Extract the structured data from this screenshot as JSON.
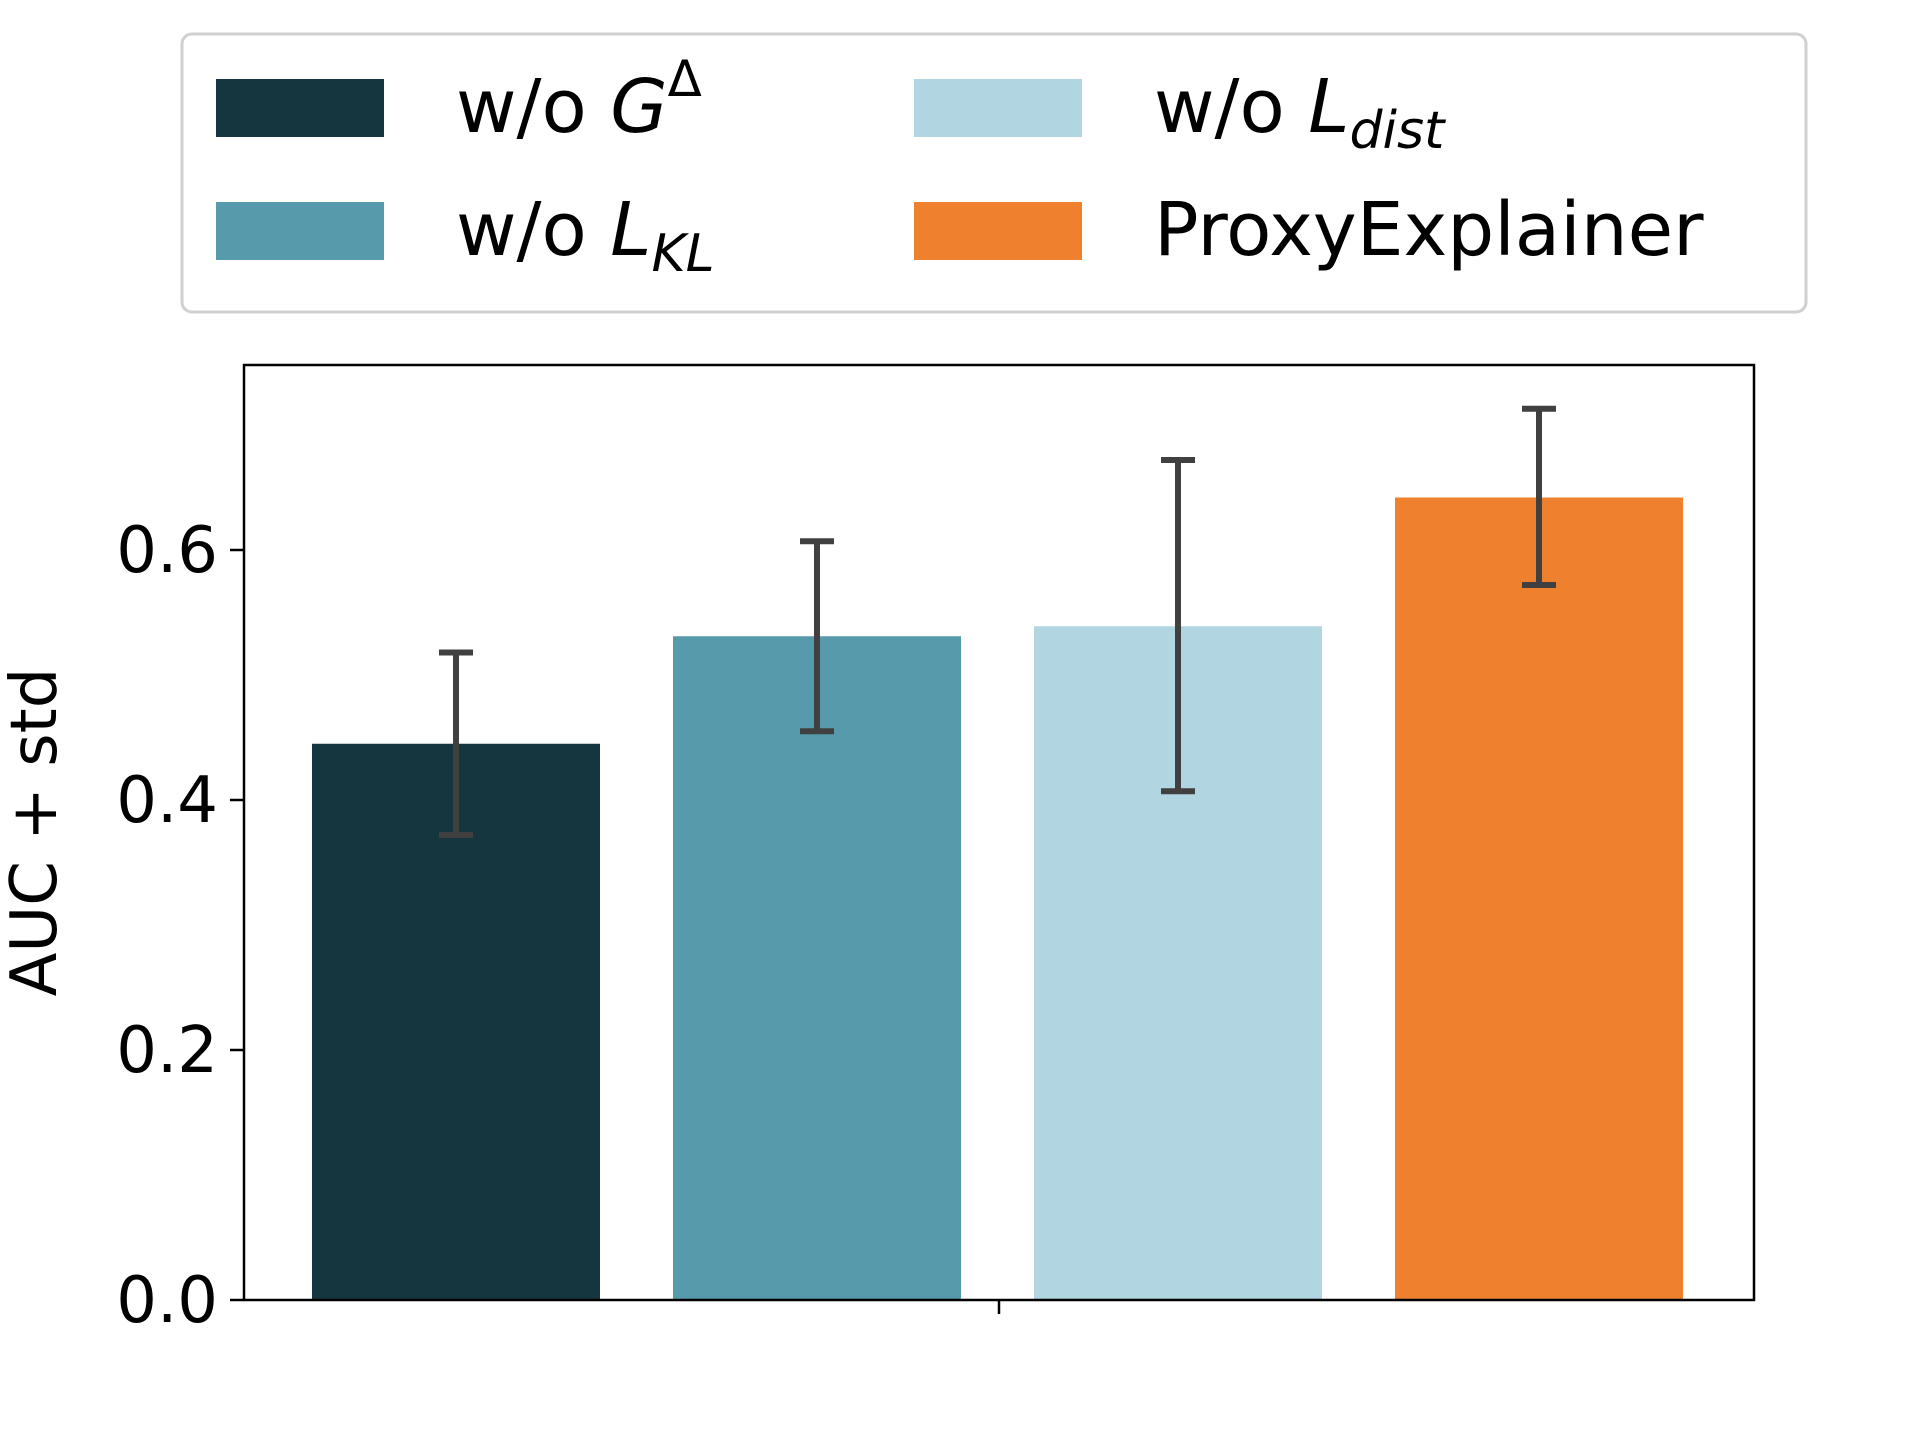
{
  "chart_data": {
    "type": "bar",
    "title": "",
    "xlabel": "",
    "ylabel": "AUC + std",
    "ylim": [
      0,
      0.75
    ],
    "yticks": [
      0.0,
      0.2,
      0.4,
      0.6
    ],
    "ytick_labels": [
      "0.0",
      "0.2",
      "0.4",
      "0.6"
    ],
    "grid": false,
    "legend_position": "top, above plot",
    "series": [
      {
        "name": "w/o G^Δ",
        "label_base": "G",
        "label_sup": "Δ",
        "label_sub": "",
        "value": 0.445,
        "std_low": 0.372,
        "std_high": 0.518,
        "color": "#15363f"
      },
      {
        "name": "w/o L_KL",
        "label_base": "L",
        "label_sup": "",
        "label_sub": "KL",
        "value": 0.531,
        "std_low": 0.455,
        "std_high": 0.607,
        "color": "#569aab"
      },
      {
        "name": "w/o L_dist",
        "label_base": "L",
        "label_sup": "",
        "label_sub": "dist",
        "value": 0.539,
        "std_low": 0.407,
        "std_high": 0.672,
        "color": "#b2d6e1"
      },
      {
        "name": "ProxyExplainer",
        "label_base": "",
        "label_sup": "",
        "label_sub": "",
        "value": 0.642,
        "std_low": 0.572,
        "std_high": 0.713,
        "color": "#ef802e"
      }
    ],
    "legend": {
      "prefix": "w/o",
      "entries": [
        "w/o G^Δ",
        "w/o L_KL",
        "w/o L_dist",
        "ProxyExplainer"
      ]
    },
    "error_bar_color": "#404040"
  }
}
